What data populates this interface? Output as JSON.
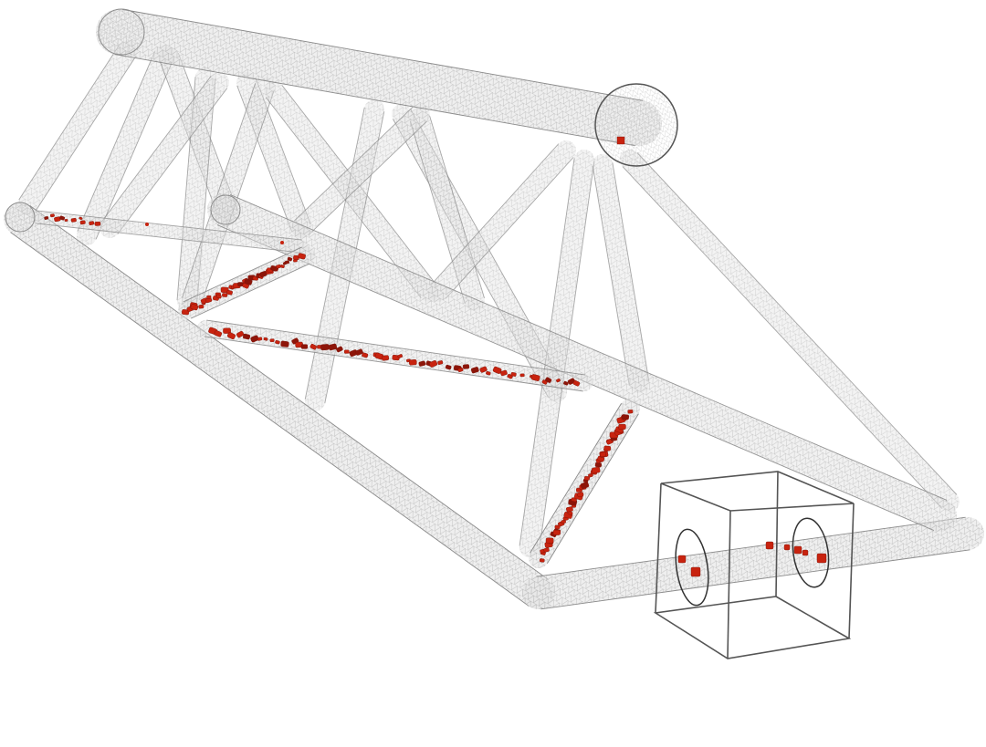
{
  "diagram": {
    "subject": "truss-frame-wireframe-with-inclusions",
    "colors": {
      "tube_fill": "#e2e2e2",
      "tube_mesh": "#b9b9b9",
      "tube_outline": "#8a8a8a",
      "box_edge": "#555555",
      "particle": "#c8230f",
      "particle_dark": "#8d1509"
    },
    "components": {
      "chords": [
        "top-chord",
        "left-bottom-chord",
        "right-bottom-chord",
        "right-bottom-chord-extension"
      ],
      "bracing": "diagonal-web-members",
      "detail_box": "zoom-cube-at-chord-end",
      "inclusions": "red-particle-clusters"
    }
  }
}
